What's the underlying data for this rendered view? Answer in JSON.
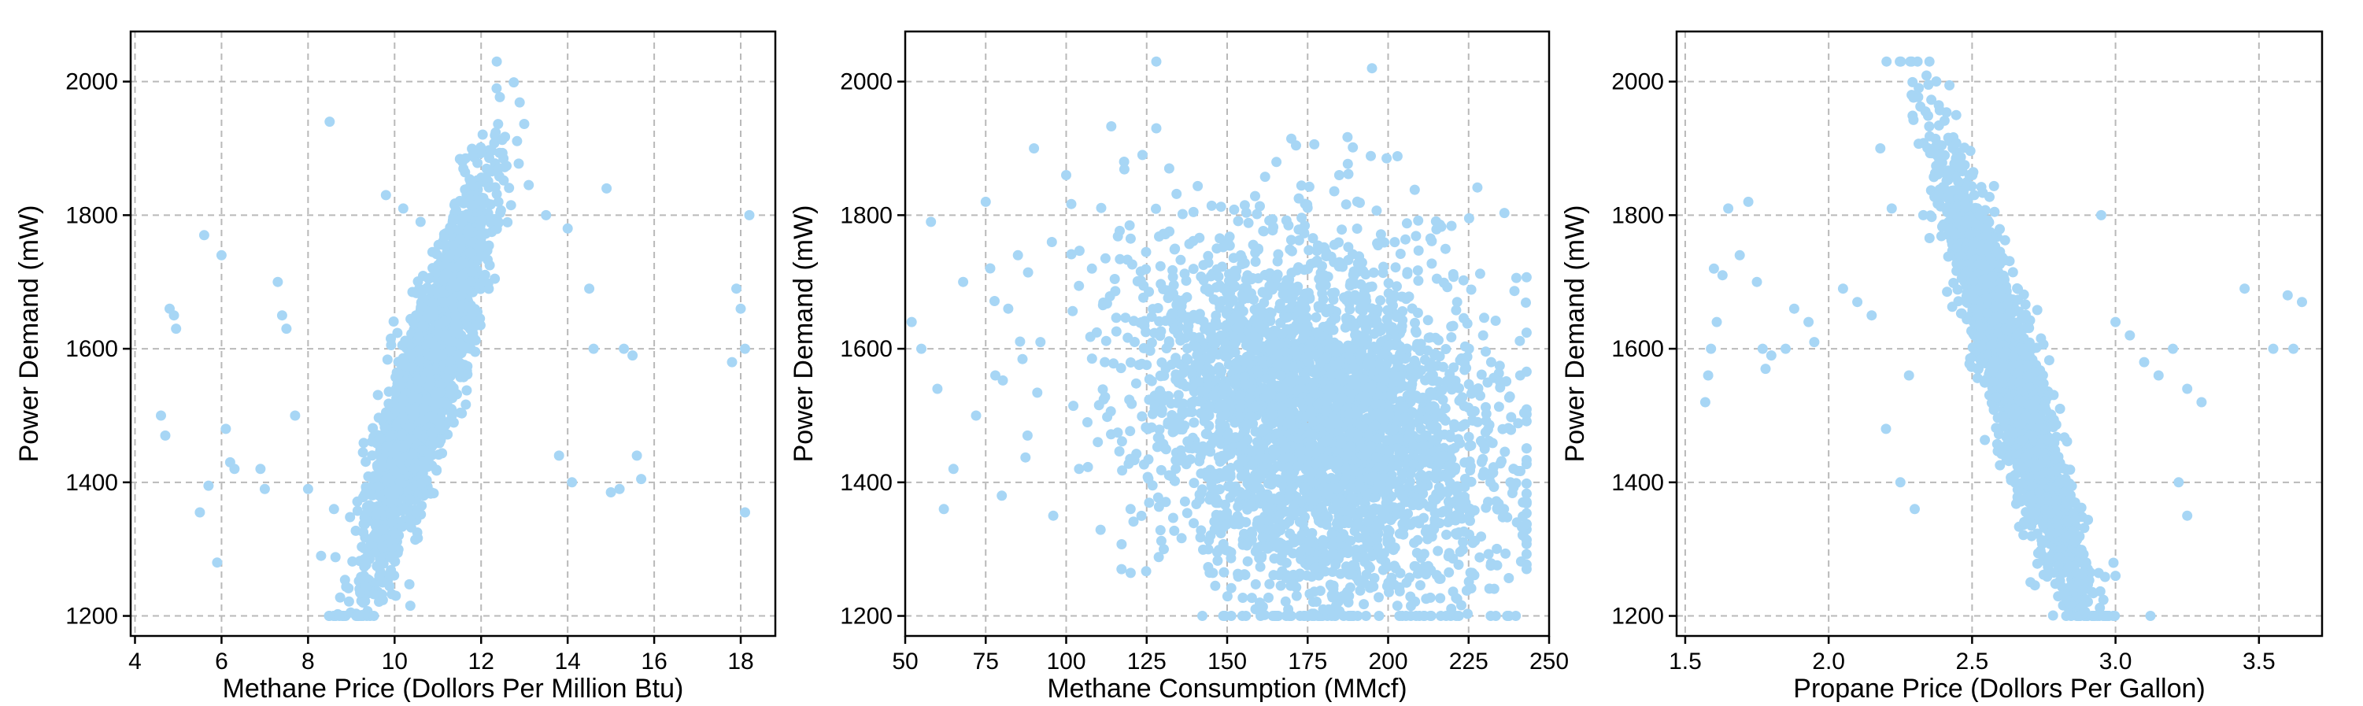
{
  "colors": {
    "point": "#a7d6f5",
    "grid": "#b9b9b9",
    "axis": "#000000"
  },
  "chart_data": [
    {
      "type": "scatter",
      "title": "",
      "xlabel": "Methane Price (Dollors Per Million Btu)",
      "ylabel": "Power Demand (mW)",
      "xlim": [
        3.9,
        18.8
      ],
      "ylim": [
        1170,
        2075
      ],
      "xticks": [
        4,
        6,
        8,
        10,
        12,
        14,
        16,
        18
      ],
      "yticks": [
        1200,
        1400,
        1600,
        1800,
        2000
      ],
      "grid": true,
      "trend": "positive",
      "bulk_points": {
        "count": 2200,
        "x_mean": 10.75,
        "x_sd": 0.72,
        "slope": 175,
        "intercept": 1550,
        "noise_sd": 72,
        "y_min": 1200,
        "y_max": 2030
      },
      "outliers": [
        [
          4.6,
          1500
        ],
        [
          4.7,
          1470
        ],
        [
          4.8,
          1660
        ],
        [
          4.9,
          1650
        ],
        [
          4.95,
          1630
        ],
        [
          5.5,
          1355
        ],
        [
          5.6,
          1770
        ],
        [
          5.7,
          1395
        ],
        [
          5.9,
          1280
        ],
        [
          6.0,
          1740
        ],
        [
          6.1,
          1480
        ],
        [
          6.2,
          1430
        ],
        [
          6.3,
          1420
        ],
        [
          6.9,
          1420
        ],
        [
          7.0,
          1390
        ],
        [
          7.3,
          1700
        ],
        [
          7.4,
          1650
        ],
        [
          7.5,
          1630
        ],
        [
          7.7,
          1500
        ],
        [
          8.0,
          1390
        ],
        [
          8.3,
          1290
        ],
        [
          8.5,
          1940
        ],
        [
          8.6,
          1360
        ],
        [
          9.8,
          1830
        ],
        [
          10.2,
          1810
        ],
        [
          10.6,
          1790
        ],
        [
          13.5,
          1800
        ],
        [
          13.8,
          1440
        ],
        [
          14.0,
          1780
        ],
        [
          14.1,
          1400
        ],
        [
          14.5,
          1690
        ],
        [
          14.9,
          1840
        ],
        [
          15.0,
          1385
        ],
        [
          15.2,
          1390
        ],
        [
          15.3,
          1600
        ],
        [
          15.5,
          1590
        ],
        [
          15.6,
          1440
        ],
        [
          15.7,
          1405
        ],
        [
          17.8,
          1580
        ],
        [
          17.9,
          1690
        ],
        [
          18.0,
          1660
        ],
        [
          18.1,
          1600
        ],
        [
          18.2,
          1800
        ],
        [
          18.1,
          1355
        ],
        [
          14.6,
          1600
        ]
      ]
    },
    {
      "type": "scatter",
      "title": "",
      "xlabel": "Methane Consumption (MMcf)",
      "ylabel": "Power Demand (mW)",
      "xlim": [
        50,
        250
      ],
      "ylim": [
        1170,
        2075
      ],
      "xticks": [
        50,
        75,
        100,
        125,
        150,
        175,
        200,
        225,
        250
      ],
      "yticks": [
        1200,
        1400,
        1600,
        1800,
        2000
      ],
      "grid": true,
      "trend": "weak negative",
      "bulk_points": {
        "count": 3400,
        "x_mean": 178,
        "x_sd": 27,
        "x_min": 50,
        "x_max": 243,
        "slope": -1.2,
        "intercept": 1705,
        "noise_sd": 135,
        "y_min": 1200,
        "y_max": 2030
      },
      "outliers": [
        [
          52,
          1640
        ],
        [
          55,
          1600
        ],
        [
          58,
          1790
        ],
        [
          60,
          1540
        ],
        [
          62,
          1360
        ],
        [
          65,
          1420
        ],
        [
          68,
          1700
        ],
        [
          72,
          1500
        ],
        [
          75,
          1820
        ],
        [
          78,
          1560
        ],
        [
          80,
          1380
        ],
        [
          82,
          1660
        ],
        [
          85,
          1740
        ],
        [
          88,
          1470
        ],
        [
          90,
          1900
        ],
        [
          92,
          1610
        ],
        [
          96,
          1350
        ],
        [
          100,
          1860
        ],
        [
          104,
          1420
        ],
        [
          108,
          1720
        ],
        [
          112,
          1580
        ],
        [
          118,
          1880
        ],
        [
          120,
          1360
        ],
        [
          128,
          2030
        ],
        [
          128,
          1930
        ],
        [
          132,
          1870
        ],
        [
          138,
          1460
        ],
        [
          195,
          2020
        ],
        [
          232,
          1580
        ],
        [
          238,
          1400
        ],
        [
          240,
          1340
        ],
        [
          242,
          1320
        ],
        [
          236,
          1360
        ],
        [
          230,
          1450
        ]
      ]
    },
    {
      "type": "scatter",
      "title": "",
      "xlabel": "Propane Price (Dollors Per Gallon)",
      "ylabel": "Power Demand (mW)",
      "xlim": [
        1.47,
        3.72
      ],
      "ylim": [
        1170,
        2075
      ],
      "xticks": [
        1.5,
        2.0,
        2.5,
        3.0,
        3.5
      ],
      "yticks": [
        1200,
        1400,
        1600,
        1800,
        2000
      ],
      "grid": true,
      "trend": "negative",
      "bulk_points": {
        "count": 2400,
        "x_mean": 2.64,
        "x_sd": 0.12,
        "slope": -1250,
        "intercept": 4860,
        "noise_sd": 65,
        "y_min": 1200,
        "y_max": 2030
      },
      "outliers": [
        [
          1.57,
          1520
        ],
        [
          1.58,
          1560
        ],
        [
          1.59,
          1600
        ],
        [
          1.6,
          1720
        ],
        [
          1.61,
          1640
        ],
        [
          1.63,
          1710
        ],
        [
          1.65,
          1810
        ],
        [
          1.69,
          1740
        ],
        [
          1.72,
          1820
        ],
        [
          1.75,
          1700
        ],
        [
          1.77,
          1600
        ],
        [
          1.78,
          1570
        ],
        [
          1.8,
          1590
        ],
        [
          1.85,
          1600
        ],
        [
          1.88,
          1660
        ],
        [
          1.93,
          1640
        ],
        [
          1.95,
          1610
        ],
        [
          2.05,
          1690
        ],
        [
          2.1,
          1670
        ],
        [
          2.15,
          1650
        ],
        [
          2.18,
          1900
        ],
        [
          2.2,
          1480
        ],
        [
          2.22,
          1810
        ],
        [
          2.25,
          1400
        ],
        [
          2.28,
          1560
        ],
        [
          2.31,
          2030
        ],
        [
          2.33,
          1800
        ],
        [
          2.95,
          1800
        ],
        [
          3.0,
          1640
        ],
        [
          3.05,
          1620
        ],
        [
          3.1,
          1580
        ],
        [
          3.15,
          1560
        ],
        [
          3.2,
          1600
        ],
        [
          3.25,
          1540
        ],
        [
          3.3,
          1520
        ],
        [
          3.45,
          1690
        ],
        [
          3.55,
          1600
        ],
        [
          3.6,
          1680
        ],
        [
          3.62,
          1600
        ],
        [
          3.65,
          1670
        ],
        [
          3.22,
          1400
        ],
        [
          3.25,
          1350
        ],
        [
          3.0,
          1260
        ],
        [
          2.3,
          1360
        ]
      ]
    }
  ]
}
